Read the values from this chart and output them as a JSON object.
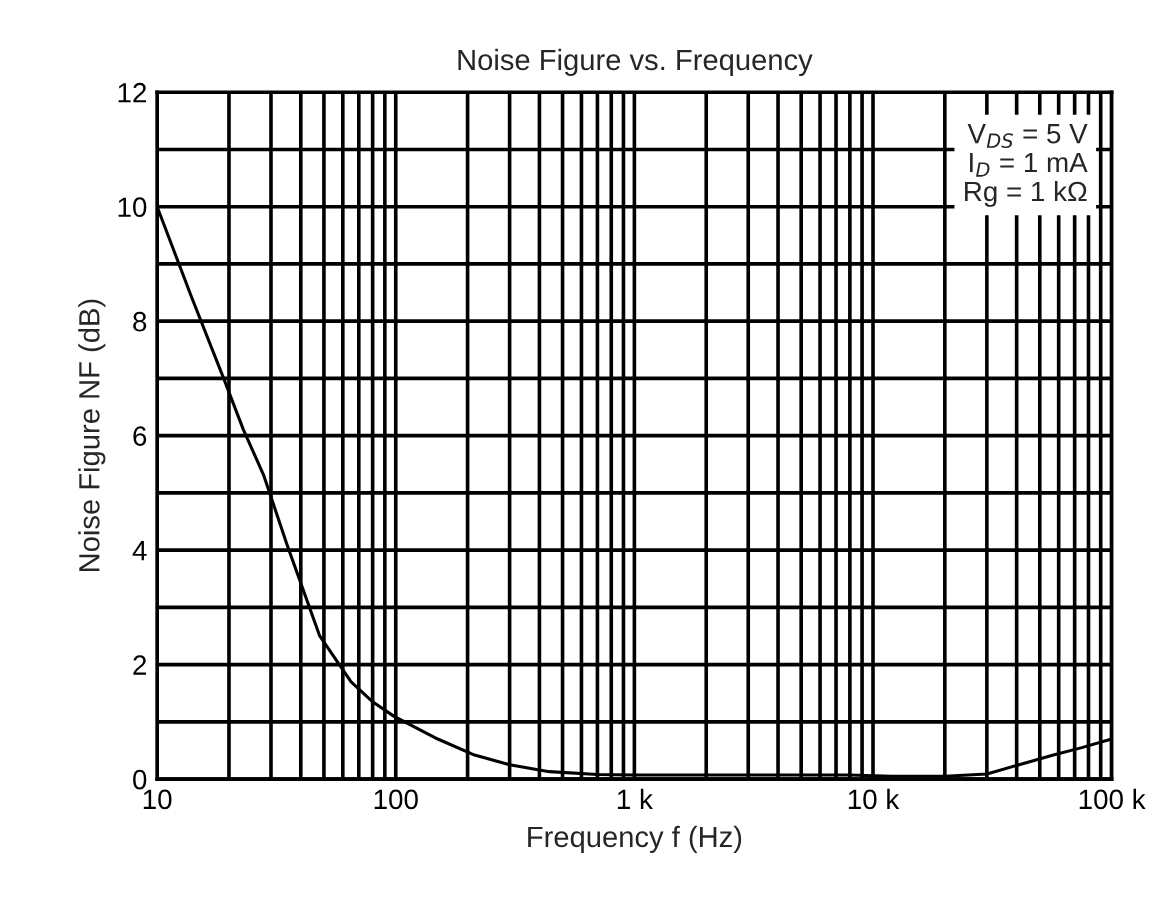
{
  "chart_data": {
    "type": "line",
    "title": "Noise Figure vs. Frequency",
    "xlabel": "Frequency f (Hz)",
    "ylabel": "Noise Figure NF (dB)",
    "annotations": [
      "V$_{DS}$ = 5 V",
      "I$_{D}$ = 1 mA",
      "Rg = 1 kΩ"
    ],
    "log": "x",
    "grid": true,
    "legend": false,
    "marker": "none",
    "line_style": "solid",
    "xlim": [
      10,
      100000
    ],
    "xticks": [
      10,
      {
        "value": 20,
        "label": null
      },
      {
        "value": 30,
        "label": null
      },
      {
        "value": 40,
        "label": null
      },
      {
        "value": 50,
        "label": null
      },
      {
        "value": 60,
        "label": null
      },
      {
        "value": 70,
        "label": null
      },
      {
        "value": 80,
        "label": null
      },
      {
        "value": 90,
        "label": null
      },
      100,
      {
        "value": 200,
        "label": null
      },
      {
        "value": 300,
        "label": null
      },
      {
        "value": 400,
        "label": null
      },
      {
        "value": 500,
        "label": null
      },
      {
        "value": 600,
        "label": null
      },
      {
        "value": 700,
        "label": null
      },
      {
        "value": 800,
        "label": null
      },
      {
        "value": 900,
        "label": null
      },
      {
        "value": 1000,
        "label": "1 k"
      },
      {
        "value": 2000,
        "label": null
      },
      {
        "value": 3000,
        "label": null
      },
      {
        "value": 4000,
        "label": null
      },
      {
        "value": 5000,
        "label": null
      },
      {
        "value": 6000,
        "label": null
      },
      {
        "value": 7000,
        "label": null
      },
      {
        "value": 8000,
        "label": null
      },
      {
        "value": 9000,
        "label": null
      },
      {
        "value": 10000,
        "label": "10 k"
      },
      {
        "value": 20000,
        "label": null
      },
      {
        "value": 30000,
        "label": null
      },
      {
        "value": 40000,
        "label": null
      },
      {
        "value": 50000,
        "label": null
      },
      {
        "value": 60000,
        "label": null
      },
      {
        "value": 70000,
        "label": null
      },
      {
        "value": 80000,
        "label": null
      },
      {
        "value": 90000,
        "label": null
      },
      {
        "value": 100000,
        "label": "100 k"
      }
    ],
    "ylim": [
      0,
      12
    ],
    "yticks": [
      0,
      {
        "value": 1,
        "label": null
      },
      2,
      {
        "value": 3,
        "label": null
      },
      4,
      {
        "value": 5,
        "label": null
      },
      6,
      {
        "value": 7,
        "label": null
      },
      8,
      {
        "value": 9,
        "label": null
      },
      10,
      {
        "value": 11,
        "label": null
      },
      12
    ],
    "x": [
      10,
      14,
      19,
      23,
      28,
      35,
      48,
      65,
      80,
      98,
      150,
      214,
      300,
      440,
      700,
      1000,
      2000,
      5000,
      8000,
      12000,
      20000,
      30000,
      45000,
      57000,
      75000,
      100000
    ],
    "series": [
      {
        "color": "#000000",
        "values": [
          10,
          8.4,
          7.0,
          6.1,
          5.3,
          4.1,
          2.5,
          1.7,
          1.35,
          1.1,
          0.7,
          0.42,
          0.25,
          0.13,
          0.08,
          0.07,
          0.07,
          0.07,
          0.07,
          0.05,
          0.05,
          0.09,
          0.3,
          0.42,
          0.55,
          0.7
        ]
      }
    ]
  }
}
